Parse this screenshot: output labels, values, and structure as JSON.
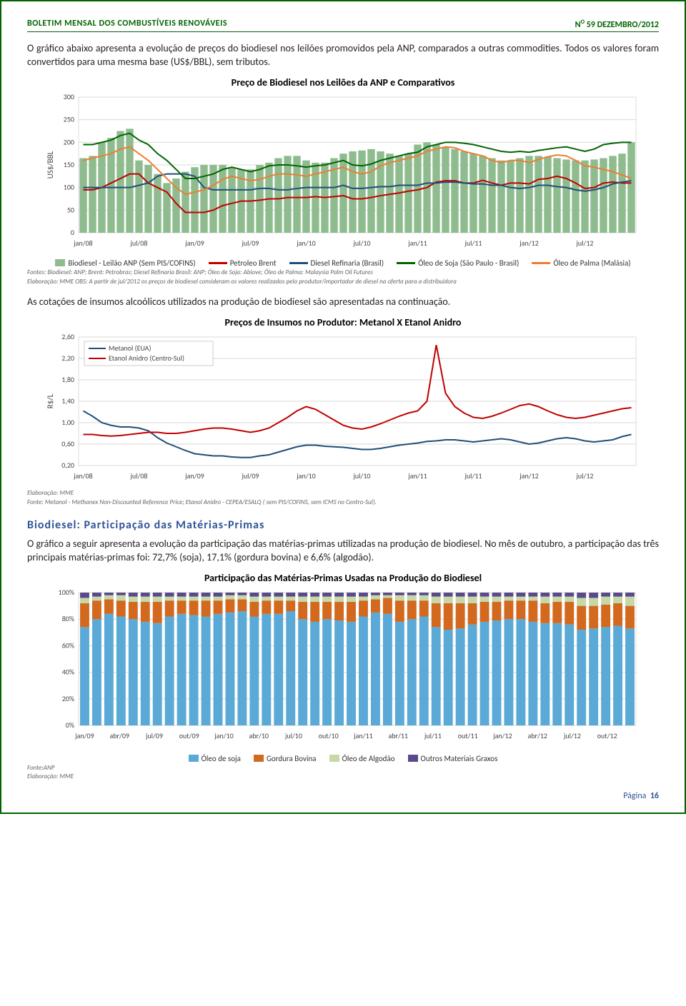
{
  "header": {
    "left": "BOLETIM MENSAL DOS COMBUSTÍVEIS RENOVÁVEIS",
    "right_prefix": "N",
    "right_sup": "O",
    "right_rest": " 59 DEZEMBRO/2012"
  },
  "para1": "O gráfico abaixo apresenta a evolução de preços do biodiesel nos leilões promovidos pela ANP, comparados a outras commodities. Todos os valores foram convertidos para uma mesma base (US$/BBL), sem tributos.",
  "chart1": {
    "title": "Preço de Biodiesel nos Leilões da ANP e Comparativos",
    "type": "bar+line",
    "ylabel": "US$/BBL",
    "ylim": [
      0,
      300
    ],
    "ytick_step": 50,
    "xticks": [
      "jan/08",
      "jul/08",
      "jan/09",
      "jul/09",
      "jan/10",
      "jul/10",
      "jan/11",
      "jul/11",
      "jan/12",
      "jul/12"
    ],
    "background_color": "#ffffff",
    "grid_color": "#d9d9d9",
    "bars": {
      "color": "#8fbc8f",
      "label": "Biodiesel - Leilão ANP (Sem PIS/COFINS)",
      "values": [
        165,
        170,
        200,
        210,
        225,
        230,
        160,
        150,
        130,
        110,
        120,
        135,
        145,
        150,
        150,
        150,
        145,
        140,
        140,
        150,
        155,
        165,
        170,
        170,
        160,
        155,
        155,
        165,
        175,
        180,
        182,
        185,
        180,
        175,
        170,
        175,
        195,
        200,
        195,
        190,
        185,
        180,
        175,
        170,
        165,
        160,
        160,
        165,
        170,
        170,
        168,
        165,
        162,
        160,
        160,
        162,
        165,
        170,
        175,
        200
      ]
    },
    "lines": [
      {
        "label": "Petroleo Brent",
        "color": "#c00000",
        "width": 2,
        "values": [
          95,
          95,
          100,
          110,
          120,
          130,
          130,
          110,
          100,
          90,
          65,
          45,
          45,
          45,
          50,
          60,
          65,
          70,
          70,
          72,
          75,
          75,
          78,
          78,
          78,
          80,
          78,
          80,
          82,
          75,
          75,
          78,
          82,
          85,
          88,
          92,
          95,
          100,
          112,
          115,
          115,
          110,
          110,
          116,
          110,
          105,
          110,
          110,
          108,
          118,
          120,
          125,
          120,
          110,
          98,
          100,
          110,
          112,
          110,
          110
        ]
      },
      {
        "label": "Diesel Refinaria (Brasil)",
        "color": "#1f4e79",
        "width": 2,
        "values": [
          100,
          100,
          100,
          100,
          100,
          100,
          105,
          110,
          125,
          130,
          130,
          130,
          125,
          100,
          95,
          95,
          95,
          95,
          95,
          98,
          98,
          95,
          95,
          98,
          100,
          100,
          100,
          100,
          105,
          98,
          98,
          100,
          102,
          102,
          105,
          105,
          105,
          110,
          110,
          112,
          112,
          110,
          108,
          108,
          105,
          105,
          100,
          98,
          100,
          105,
          105,
          102,
          100,
          95,
          92,
          95,
          100,
          108,
          112,
          115
        ]
      },
      {
        "label": "Óleo de Soja (São Paulo - Brasil)",
        "color": "#006400",
        "width": 2,
        "values": [
          195,
          195,
          200,
          205,
          215,
          220,
          205,
          195,
          175,
          160,
          140,
          120,
          120,
          125,
          130,
          140,
          145,
          140,
          135,
          140,
          148,
          150,
          150,
          148,
          145,
          148,
          150,
          155,
          160,
          150,
          148,
          152,
          160,
          165,
          170,
          175,
          178,
          190,
          195,
          200,
          200,
          198,
          195,
          190,
          185,
          180,
          178,
          180,
          178,
          182,
          185,
          188,
          190,
          185,
          180,
          185,
          195,
          198,
          200,
          200
        ]
      },
      {
        "label": "Óleo de Palma (Malásia)",
        "color": "#ed7d31",
        "width": 2,
        "values": [
          160,
          165,
          170,
          175,
          185,
          190,
          175,
          160,
          140,
          120,
          100,
          85,
          90,
          95,
          105,
          118,
          125,
          120,
          115,
          118,
          125,
          130,
          130,
          128,
          125,
          130,
          135,
          140,
          145,
          135,
          130,
          135,
          148,
          155,
          160,
          165,
          170,
          180,
          185,
          190,
          188,
          180,
          175,
          170,
          160,
          155,
          160,
          160,
          155,
          162,
          168,
          172,
          170,
          160,
          148,
          145,
          140,
          135,
          128,
          120
        ]
      }
    ],
    "note1": "Fontes: Biodiesel: ANP; Brent: Petrobras; Diesel Refinaria Brasil: ANP; Óleo de Soja: Abiove; Óleo de Palma: Malaysia Palm Oil Futures",
    "note2": "Elaboração: MME    OBS: A partir de jul/2012 os preços de biodiesel consideram os valores realizados pelo produtor/importador de diesel na oferta para a distribuidora"
  },
  "para2": "As cotações de insumos alcoólicos utilizados na produção de biodiesel são apresentadas na continuação.",
  "chart2": {
    "title": "Preços de Insumos no Produtor: Metanol X Etanol Anidro",
    "type": "line",
    "ylabel": "R$/L",
    "ylim": [
      0.2,
      2.6
    ],
    "yticks": [
      0.2,
      0.6,
      1.0,
      1.4,
      1.8,
      2.2,
      2.6
    ],
    "xticks": [
      "jan/08",
      "jul/08",
      "jan/09",
      "jul/09",
      "jan/10",
      "jul/10",
      "jan/11",
      "jul/11",
      "jan/12",
      "jul/12"
    ],
    "background_color": "#ffffff",
    "grid_color": "#d9d9d9",
    "lines": [
      {
        "label": "Metanol (EUA)",
        "color": "#1f4e79",
        "width": 2,
        "values": [
          1.22,
          1.12,
          1.0,
          0.95,
          0.92,
          0.92,
          0.9,
          0.85,
          0.72,
          0.62,
          0.55,
          0.48,
          0.42,
          0.4,
          0.38,
          0.38,
          0.36,
          0.35,
          0.35,
          0.38,
          0.4,
          0.45,
          0.5,
          0.55,
          0.58,
          0.58,
          0.56,
          0.55,
          0.54,
          0.52,
          0.5,
          0.5,
          0.52,
          0.55,
          0.58,
          0.6,
          0.62,
          0.65,
          0.66,
          0.68,
          0.68,
          0.66,
          0.64,
          0.66,
          0.68,
          0.7,
          0.68,
          0.64,
          0.6,
          0.62,
          0.66,
          0.7,
          0.72,
          0.7,
          0.66,
          0.64,
          0.66,
          0.68,
          0.74,
          0.78
        ]
      },
      {
        "label": "Etanol Anidro (Centro-Sul)",
        "color": "#c00000",
        "width": 2,
        "values": [
          0.78,
          0.78,
          0.76,
          0.75,
          0.76,
          0.78,
          0.8,
          0.82,
          0.82,
          0.8,
          0.8,
          0.82,
          0.85,
          0.88,
          0.9,
          0.9,
          0.88,
          0.85,
          0.82,
          0.85,
          0.9,
          1.0,
          1.1,
          1.22,
          1.3,
          1.25,
          1.15,
          1.05,
          0.95,
          0.9,
          0.88,
          0.92,
          0.98,
          1.05,
          1.12,
          1.18,
          1.22,
          1.4,
          2.45,
          1.55,
          1.3,
          1.18,
          1.1,
          1.08,
          1.12,
          1.18,
          1.25,
          1.32,
          1.35,
          1.3,
          1.22,
          1.15,
          1.1,
          1.08,
          1.1,
          1.14,
          1.18,
          1.22,
          1.26,
          1.28
        ]
      }
    ],
    "note1": "Elaboração: MME",
    "note2": "Fonte: Metanol - Methanex Non-Discounted Reference Price; Etanol Anidro - CEPEA/ESALQ ( sem PIS/COFINS, sem ICMS no Centro-Sul)."
  },
  "section_title": "Biodiesel: Participação das Matérias-Primas",
  "para3": "O gráfico a seguir apresenta a evolução da participação das matérias-primas utilizadas na produção de biodiesel. No mês de outubro, a participação das três principais matérias-primas foi: 72,7% (soja), 17,1% (gordura bovina) e 6,6% (algodão).",
  "chart3": {
    "title": "Participação das Matérias-Primas Usadas na Produção do Biodiesel",
    "type": "stacked-bar",
    "ylabel": "",
    "ylim": [
      0,
      100
    ],
    "ytick_step": 20,
    "ytick_suffix": "%",
    "xticks": [
      "jan/09",
      "abr/09",
      "jul/09",
      "out/09",
      "jan/10",
      "abr/10",
      "jul/10",
      "out/10",
      "jan/11",
      "abr/11",
      "jul/11",
      "out/11",
      "jan/12",
      "abr/12",
      "jul/12",
      "out/12"
    ],
    "background_color": "#ffffff",
    "grid_color": "#d9d9d9",
    "series": [
      {
        "label": "Óleo de soja",
        "color": "#5aa9d6"
      },
      {
        "label": "Gordura Bovina",
        "color": "#d2691e"
      },
      {
        "label": "Óleo de Algodão",
        "color": "#c5d8a5"
      },
      {
        "label": "Outros Materiais Graxos",
        "color": "#5b4a8a"
      }
    ],
    "values": [
      [
        74,
        18,
        4,
        4
      ],
      [
        80,
        14,
        3,
        3
      ],
      [
        84,
        11,
        3,
        2
      ],
      [
        82,
        12,
        4,
        2
      ],
      [
        80,
        13,
        4,
        3
      ],
      [
        78,
        15,
        4,
        3
      ],
      [
        77,
        16,
        4,
        3
      ],
      [
        82,
        12,
        3,
        3
      ],
      [
        84,
        10,
        3,
        3
      ],
      [
        83,
        11,
        3,
        3
      ],
      [
        82,
        12,
        3,
        3
      ],
      [
        84,
        10,
        3,
        3
      ],
      [
        85,
        10,
        3,
        2
      ],
      [
        86,
        9,
        3,
        2
      ],
      [
        82,
        11,
        4,
        3
      ],
      [
        84,
        10,
        3,
        3
      ],
      [
        84,
        10,
        3,
        3
      ],
      [
        86,
        8,
        3,
        3
      ],
      [
        80,
        13,
        4,
        3
      ],
      [
        78,
        15,
        4,
        3
      ],
      [
        80,
        13,
        4,
        3
      ],
      [
        79,
        14,
        4,
        3
      ],
      [
        78,
        15,
        4,
        3
      ],
      [
        82,
        12,
        3,
        3
      ],
      [
        85,
        10,
        3,
        2
      ],
      [
        84,
        12,
        2,
        2
      ],
      [
        78,
        16,
        4,
        2
      ],
      [
        80,
        14,
        4,
        2
      ],
      [
        82,
        12,
        4,
        2
      ],
      [
        74,
        18,
        5,
        3
      ],
      [
        72,
        20,
        5,
        3
      ],
      [
        73,
        19,
        5,
        3
      ],
      [
        76,
        16,
        5,
        3
      ],
      [
        78,
        15,
        4,
        3
      ],
      [
        79,
        14,
        4,
        3
      ],
      [
        80,
        14,
        3,
        3
      ],
      [
        80,
        14,
        3,
        3
      ],
      [
        78,
        16,
        3,
        3
      ],
      [
        77,
        15,
        5,
        3
      ],
      [
        77,
        16,
        4,
        3
      ],
      [
        76,
        17,
        4,
        3
      ],
      [
        72,
        18,
        6,
        4
      ],
      [
        73,
        17,
        6,
        4
      ],
      [
        74,
        17,
        6,
        3
      ],
      [
        75,
        17,
        5,
        3
      ],
      [
        73,
        17,
        7,
        3
      ]
    ],
    "note1": "Fonte:ANP",
    "note2": "Elaboração: MME"
  },
  "footer": {
    "label": "Página",
    "num": "16"
  }
}
